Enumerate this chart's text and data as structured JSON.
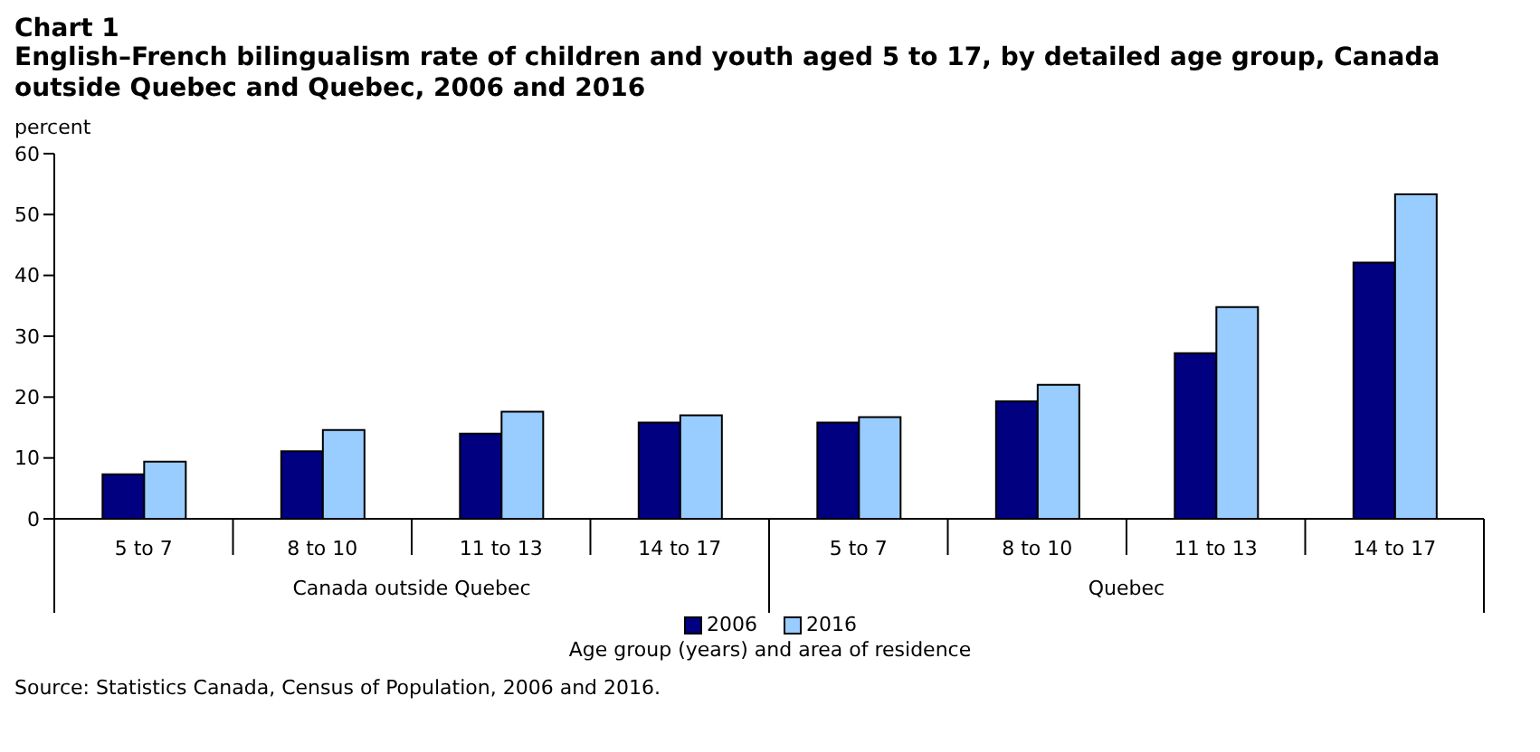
{
  "chart_data": {
    "type": "bar",
    "title": "Chart 1",
    "subtitle": "English–French bilingualism rate of children and youth aged 5 to 17, by detailed age group, Canada outside Quebec and Quebec, 2006 and 2016",
    "ylabel": "percent",
    "xlabel": "Age group (years) and area of residence",
    "categories": [
      "5 to 7",
      "8 to 10",
      "11 to 13",
      "14 to 17",
      "5 to 7",
      "8 to 10",
      "11 to 13",
      "14 to 17"
    ],
    "series": [
      {
        "name": "2006",
        "color": "#000080",
        "values": [
          7.3,
          11.1,
          14.0,
          15.8,
          15.8,
          19.3,
          27.2,
          42.1
        ]
      },
      {
        "name": "2016",
        "color": "#99ccff",
        "values": [
          9.4,
          14.6,
          17.6,
          17.0,
          16.7,
          22.0,
          34.8,
          53.3
        ]
      }
    ],
    "ylim": [
      0,
      60
    ],
    "yticks": [
      0,
      10,
      20,
      30,
      40,
      50,
      60
    ],
    "grid": false,
    "legend": "bottom",
    "annotations": [
      "Canada outside Quebec",
      "Quebec",
      "Source: Statistics Canada, Census of Population, 2006 and 2016."
    ]
  }
}
